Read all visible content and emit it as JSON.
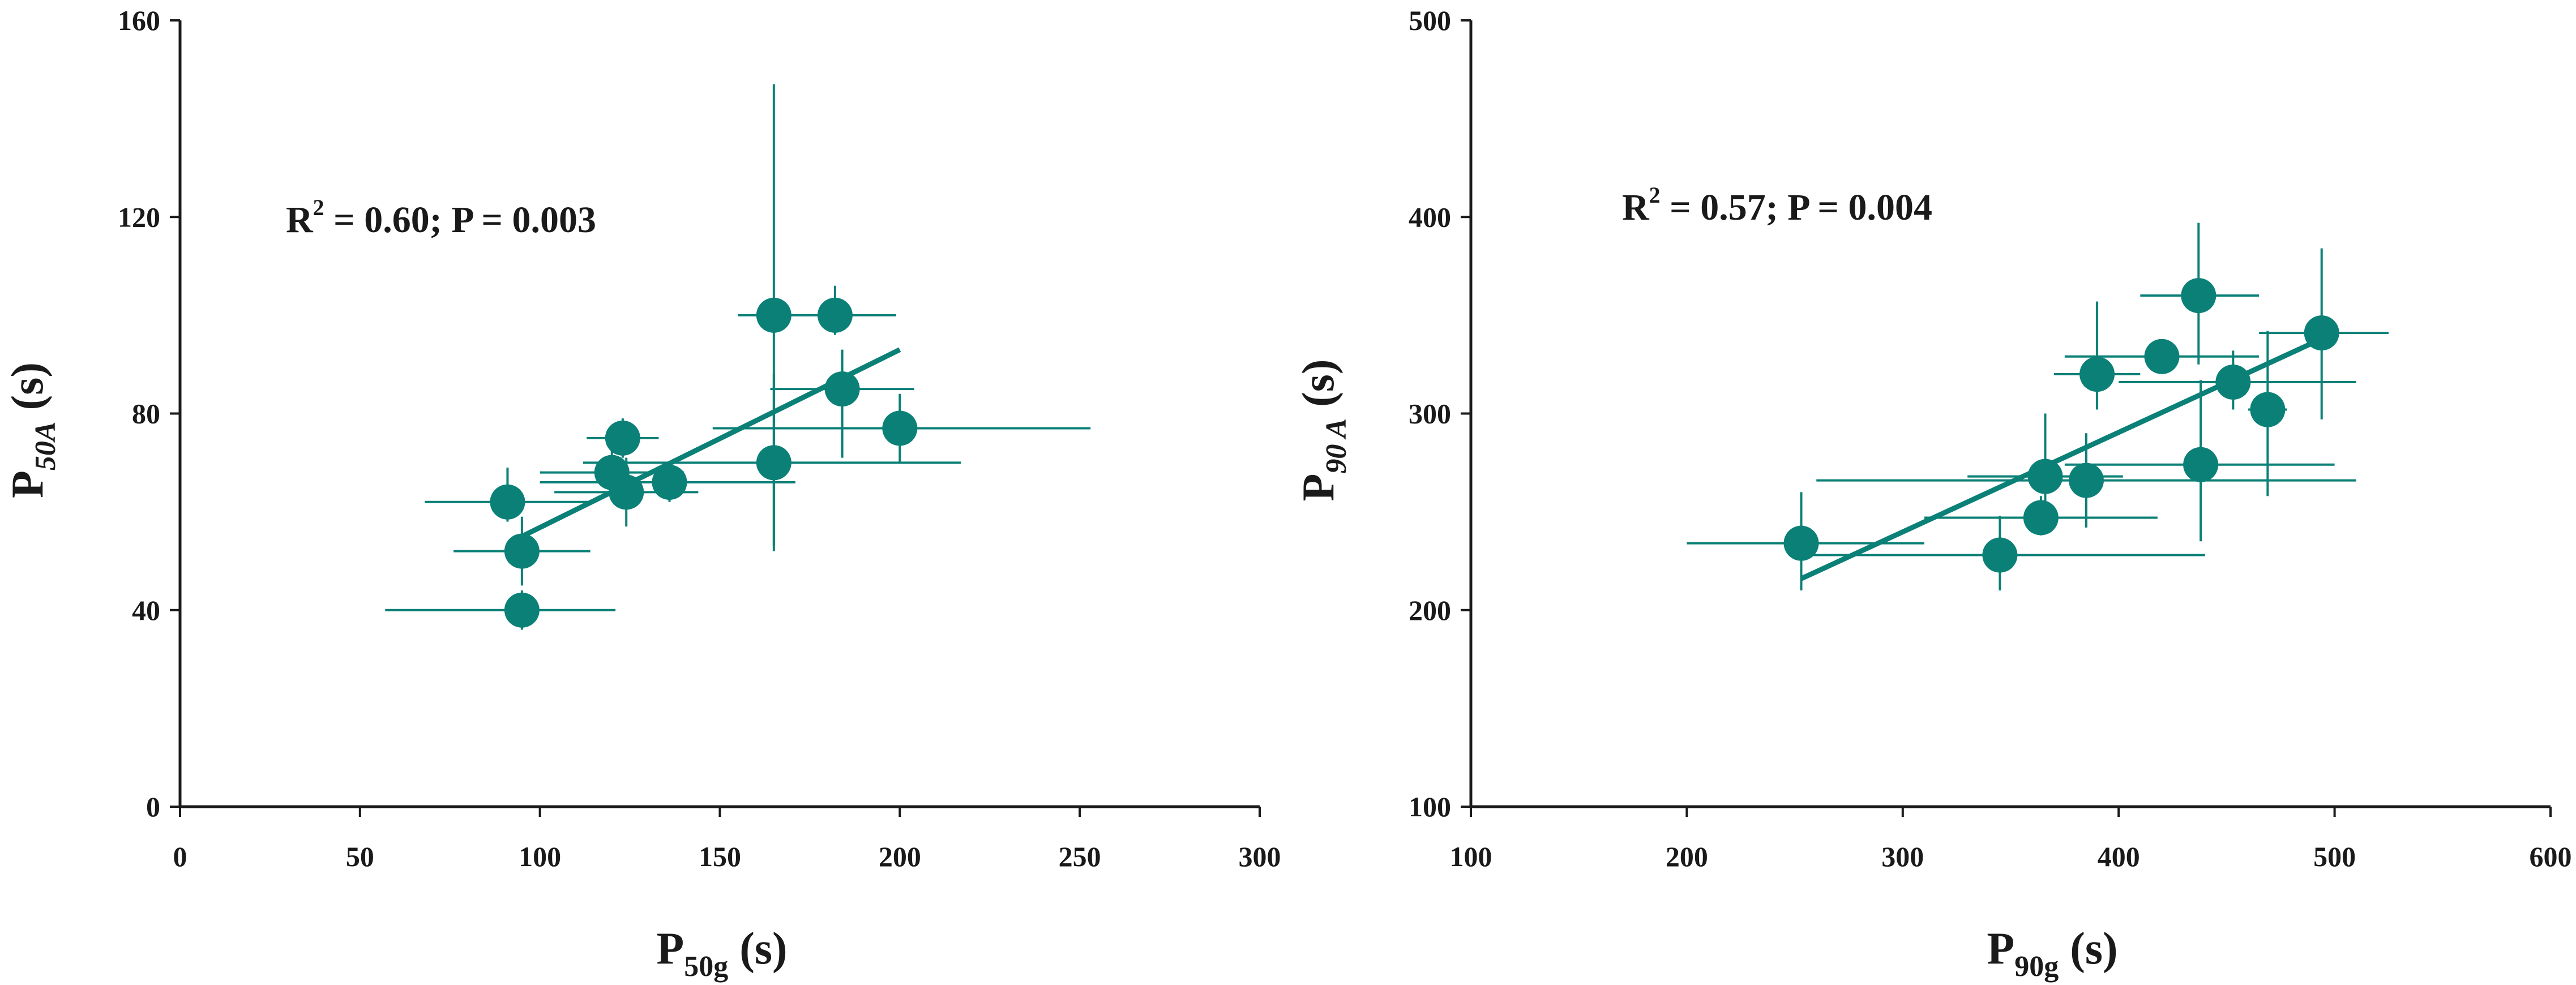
{
  "colors": {
    "series": "#0b8077",
    "axis": "#1a1a1a",
    "background": "#ffffff"
  },
  "chart_data": [
    {
      "type": "scatter",
      "xlim": [
        0,
        300
      ],
      "ylim": [
        0,
        160
      ],
      "xticks": [
        0,
        50,
        100,
        150,
        200,
        250,
        300
      ],
      "yticks": [
        0,
        40,
        80,
        120,
        160
      ],
      "x_ticklabels": [
        "0",
        "50",
        "100",
        "150",
        "200",
        "250",
        "300"
      ],
      "y_ticklabels": [
        "0",
        "40",
        "80",
        "120",
        "160"
      ],
      "xlabel": {
        "main": "P",
        "sub": "50g",
        "unit": " (s)"
      },
      "ylabel": {
        "main": "P",
        "sub": "50A",
        "unit": " (s)"
      },
      "annotation": {
        "r_label": "R",
        "r_power": "2",
        "rest": " = 0.60; P = 0.003"
      },
      "grid": false,
      "points": [
        {
          "x": 91,
          "y": 62,
          "xerr": [
            68,
            114
          ],
          "yerr": [
            58,
            69
          ]
        },
        {
          "x": 95,
          "y": 52,
          "xerr": [
            76,
            114
          ],
          "yerr": [
            45,
            59
          ]
        },
        {
          "x": 95,
          "y": 40,
          "xerr": [
            57,
            121
          ],
          "yerr": [
            36,
            44
          ]
        },
        {
          "x": 120,
          "y": 68,
          "xerr": [
            100,
            140
          ],
          "yerr": [
            63,
            73
          ]
        },
        {
          "x": 123,
          "y": 75,
          "xerr": [
            113,
            133
          ],
          "yerr": [
            71,
            79
          ]
        },
        {
          "x": 124,
          "y": 64,
          "xerr": [
            104,
            144
          ],
          "yerr": [
            57,
            71
          ]
        },
        {
          "x": 136,
          "y": 66,
          "xerr": [
            100,
            171
          ],
          "yerr": [
            62,
            70
          ]
        },
        {
          "x": 165,
          "y": 100,
          "xerr": [
            155,
            175
          ],
          "yerr": [
            53,
            147
          ]
        },
        {
          "x": 165,
          "y": 70,
          "xerr": [
            112,
            217
          ],
          "yerr": [
            52,
            88
          ]
        },
        {
          "x": 182,
          "y": 100,
          "xerr": [
            165,
            199
          ],
          "yerr": [
            96,
            106
          ]
        },
        {
          "x": 184,
          "y": 85,
          "xerr": [
            164,
            204
          ],
          "yerr": [
            71,
            93
          ]
        },
        {
          "x": 200,
          "y": 77,
          "xerr": [
            148,
            253
          ],
          "yerr": [
            70,
            84
          ]
        }
      ],
      "fit_line": {
        "x": [
          95,
          200
        ],
        "y": [
          55,
          93
        ]
      }
    },
    {
      "type": "scatter",
      "xlim": [
        100,
        600
      ],
      "ylim": [
        100,
        500
      ],
      "xticks": [
        100,
        200,
        300,
        400,
        500,
        600
      ],
      "yticks": [
        100,
        200,
        300,
        400,
        500
      ],
      "x_ticklabels": [
        "100",
        "200",
        "300",
        "400",
        "500",
        "600"
      ],
      "y_ticklabels": [
        "100",
        "200",
        "300",
        "400",
        "500"
      ],
      "xlabel": {
        "main": "P",
        "sub": "90g",
        "unit": " (s)"
      },
      "ylabel": {
        "main": "P",
        "sub": "90 A",
        "unit": " (s)"
      },
      "annotation": {
        "r_label": "R",
        "r_power": "2",
        "rest": " = 0.57; P = 0.004"
      },
      "grid": false,
      "points": [
        {
          "x": 253,
          "y": 234,
          "xerr": [
            200,
            310
          ],
          "yerr": [
            210,
            260
          ]
        },
        {
          "x": 345,
          "y": 228,
          "xerr": [
            250,
            440
          ],
          "yerr": [
            210,
            248
          ]
        },
        {
          "x": 364,
          "y": 247,
          "xerr": [
            310,
            418
          ],
          "yerr": [
            238,
            258
          ]
        },
        {
          "x": 366,
          "y": 268,
          "xerr": [
            330,
            402
          ],
          "yerr": [
            240,
            300
          ]
        },
        {
          "x": 385,
          "y": 266,
          "xerr": [
            260,
            510
          ],
          "yerr": [
            242,
            290
          ]
        },
        {
          "x": 390,
          "y": 320,
          "xerr": [
            370,
            410
          ],
          "yerr": [
            302,
            357
          ]
        },
        {
          "x": 420,
          "y": 329,
          "xerr": [
            375,
            465
          ],
          "yerr": [
            322,
            337
          ]
        },
        {
          "x": 437,
          "y": 360,
          "xerr": [
            410,
            465
          ],
          "yerr": [
            325,
            397
          ]
        },
        {
          "x": 438,
          "y": 274,
          "xerr": [
            375,
            500
          ],
          "yerr": [
            235,
            317
          ]
        },
        {
          "x": 453,
          "y": 316,
          "xerr": [
            400,
            510
          ],
          "yerr": [
            302,
            332
          ]
        },
        {
          "x": 469,
          "y": 302,
          "xerr": [
            460,
            478
          ],
          "yerr": [
            258,
            342
          ]
        },
        {
          "x": 494,
          "y": 341,
          "xerr": [
            465,
            525
          ],
          "yerr": [
            297,
            384
          ]
        }
      ],
      "fit_line": {
        "x": [
          253,
          494
        ],
        "y": [
          216,
          338
        ]
      }
    }
  ]
}
